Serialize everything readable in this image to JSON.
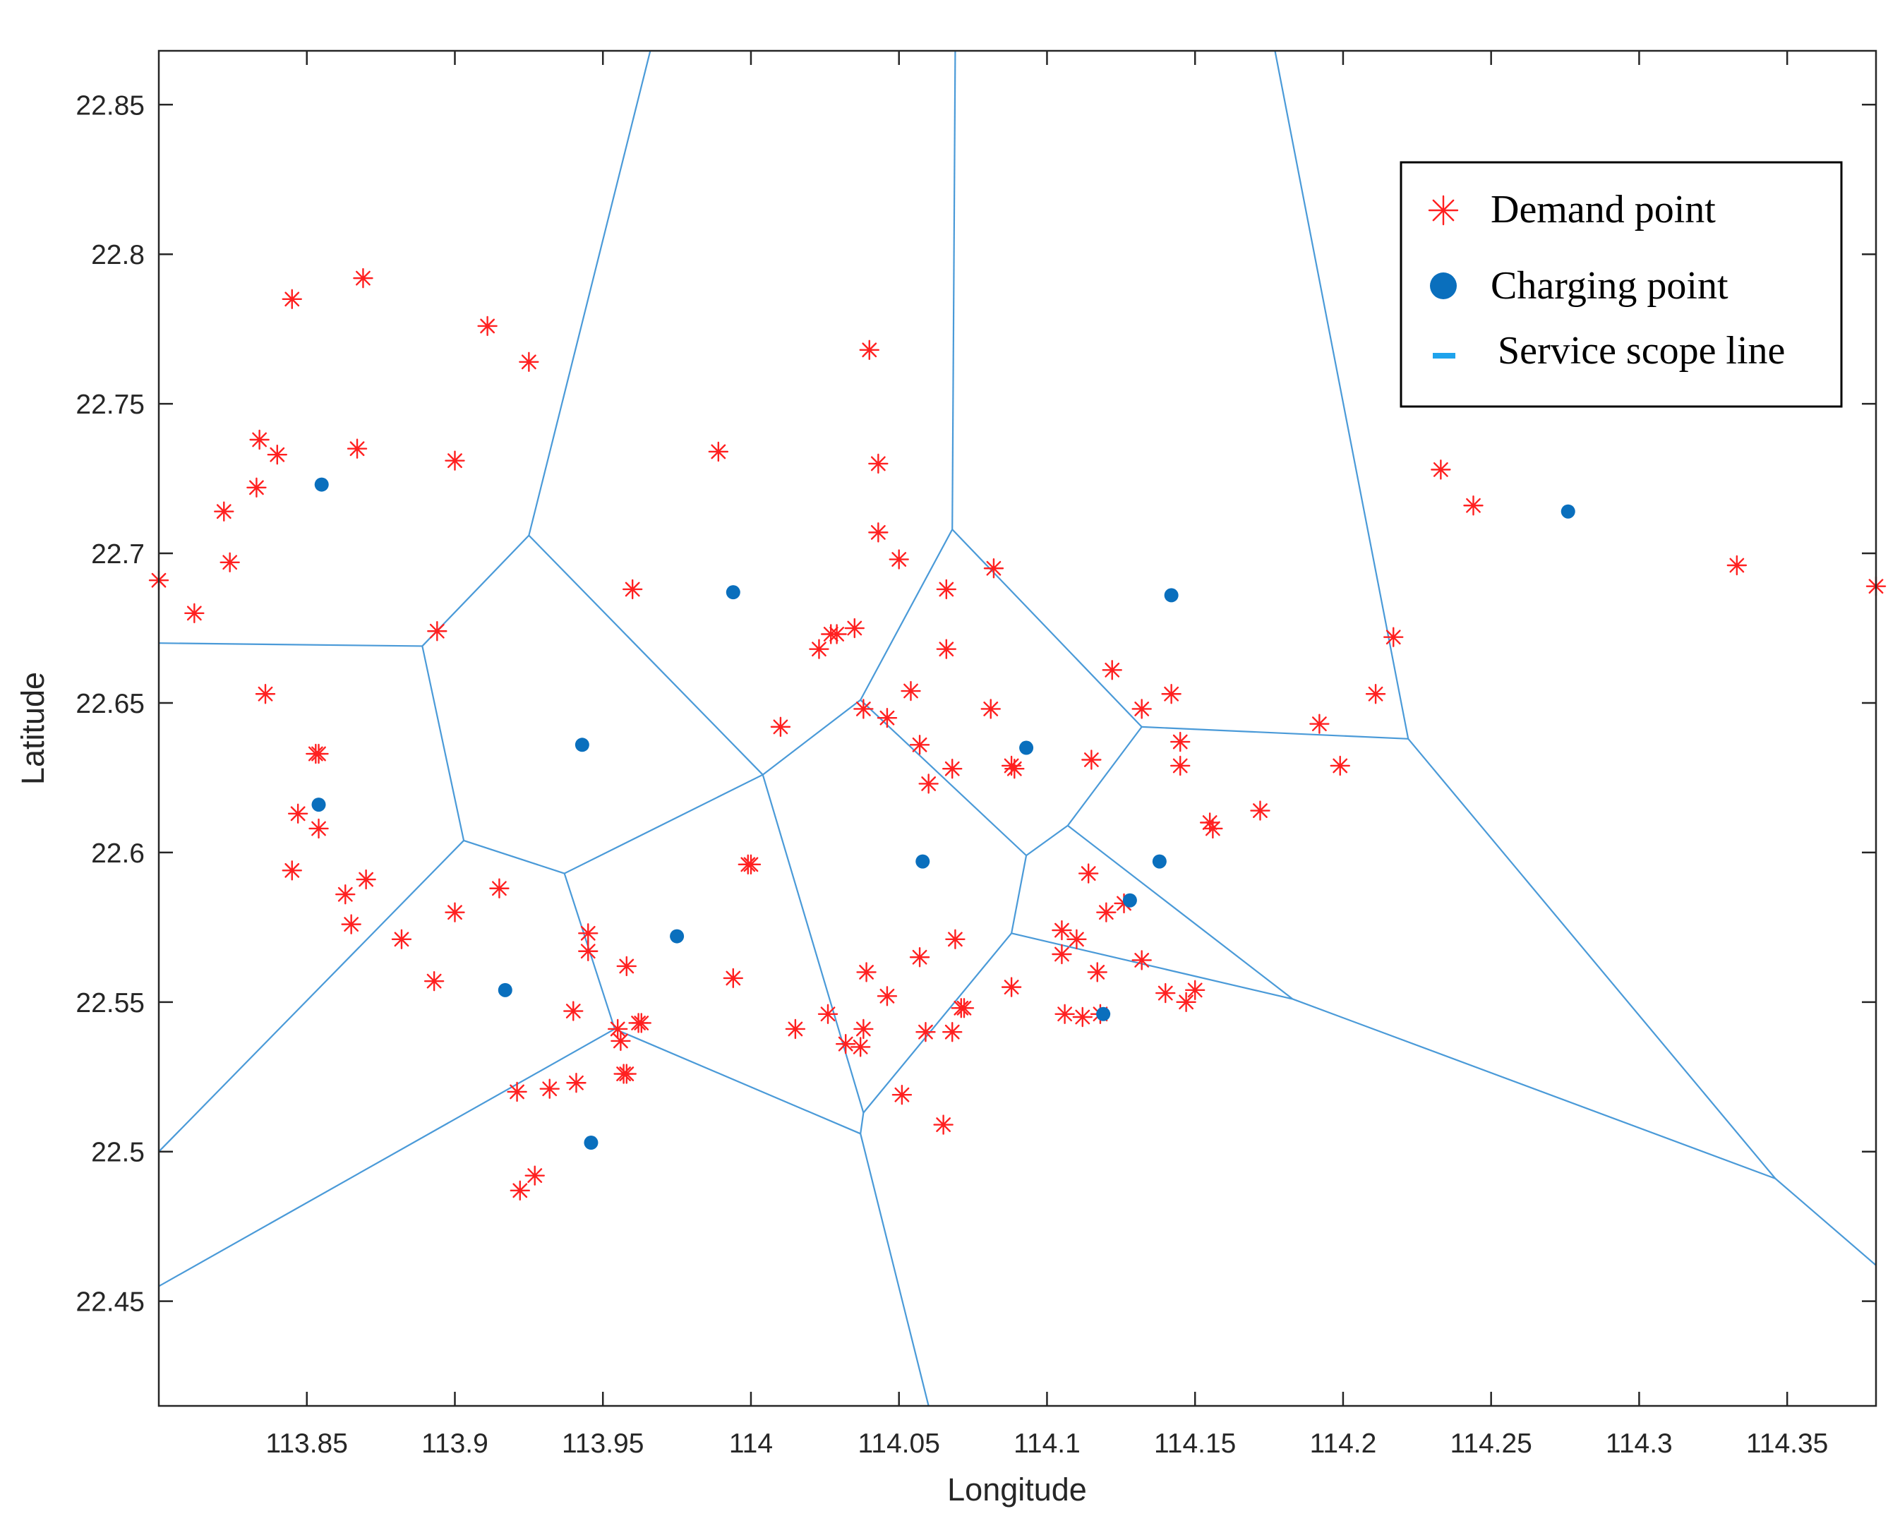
{
  "chart_data": {
    "type": "scatter",
    "title": "",
    "xlabel": "Longitude",
    "ylabel": "Latitude",
    "xlim": [
      113.8,
      114.38
    ],
    "ylim": [
      22.415,
      22.868
    ],
    "grid": false,
    "legend_position": "top-right",
    "x_ticks": [
      "113.85",
      "113.9",
      "113.95",
      "114",
      "114.05",
      "114.1",
      "114.15",
      "114.2",
      "114.25",
      "114.3",
      "114.35"
    ],
    "x_tick_values": [
      113.85,
      113.9,
      113.95,
      114.0,
      114.05,
      114.1,
      114.15,
      114.2,
      114.25,
      114.3,
      114.35
    ],
    "y_ticks": [
      "22.45",
      "22.5",
      "22.55",
      "22.6",
      "22.65",
      "22.7",
      "22.75",
      "22.8",
      "22.85"
    ],
    "y_tick_values": [
      22.45,
      22.5,
      22.55,
      22.6,
      22.65,
      22.7,
      22.75,
      22.8,
      22.85
    ],
    "colors": {
      "demand": "#ff2020",
      "charging": "#0a6fbd",
      "service_line": "#4a9ad8",
      "legend_service_line": "#1fa3ec",
      "axes": "#262626"
    },
    "legend": [
      {
        "key": "demand",
        "label": "Demand point"
      },
      {
        "key": "charging",
        "label": "Charging point"
      },
      {
        "key": "service",
        "label": "Service scope line"
      }
    ],
    "series": [
      {
        "name": "Demand point",
        "marker": "asterisk",
        "points": [
          [
            113.8,
            22.691
          ],
          [
            113.812,
            22.68
          ],
          [
            113.822,
            22.714
          ],
          [
            113.824,
            22.697
          ],
          [
            113.833,
            22.722
          ],
          [
            113.834,
            22.738
          ],
          [
            113.84,
            22.733
          ],
          [
            113.845,
            22.785
          ],
          [
            113.869,
            22.792
          ],
          [
            113.867,
            22.735
          ],
          [
            113.836,
            22.653
          ],
          [
            113.853,
            22.633
          ],
          [
            113.854,
            22.633
          ],
          [
            113.847,
            22.613
          ],
          [
            113.854,
            22.608
          ],
          [
            113.845,
            22.594
          ],
          [
            113.863,
            22.586
          ],
          [
            113.87,
            22.591
          ],
          [
            113.865,
            22.576
          ],
          [
            113.882,
            22.571
          ],
          [
            113.893,
            22.557
          ],
          [
            113.9,
            22.58
          ],
          [
            113.894,
            22.674
          ],
          [
            113.9,
            22.731
          ],
          [
            113.911,
            22.776
          ],
          [
            113.925,
            22.764
          ],
          [
            113.915,
            22.588
          ],
          [
            113.94,
            22.547
          ],
          [
            113.945,
            22.573
          ],
          [
            113.945,
            22.567
          ],
          [
            113.958,
            22.562
          ],
          [
            113.955,
            22.541
          ],
          [
            113.956,
            22.537
          ],
          [
            113.957,
            22.526
          ],
          [
            113.958,
            22.526
          ],
          [
            113.962,
            22.543
          ],
          [
            113.963,
            22.543
          ],
          [
            113.921,
            22.52
          ],
          [
            113.932,
            22.521
          ],
          [
            113.941,
            22.523
          ],
          [
            113.922,
            22.487
          ],
          [
            113.927,
            22.492
          ],
          [
            113.96,
            22.688
          ],
          [
            113.989,
            22.734
          ],
          [
            113.994,
            22.558
          ],
          [
            113.999,
            22.596
          ],
          [
            114.0,
            22.596
          ],
          [
            114.01,
            22.642
          ],
          [
            114.015,
            22.541
          ],
          [
            114.023,
            22.668
          ],
          [
            114.027,
            22.673
          ],
          [
            114.029,
            22.673
          ],
          [
            114.035,
            22.675
          ],
          [
            114.026,
            22.546
          ],
          [
            114.032,
            22.536
          ],
          [
            114.037,
            22.535
          ],
          [
            114.038,
            22.541
          ],
          [
            114.039,
            22.56
          ],
          [
            114.04,
            22.768
          ],
          [
            114.043,
            22.73
          ],
          [
            114.043,
            22.707
          ],
          [
            114.05,
            22.698
          ],
          [
            114.038,
            22.648
          ],
          [
            114.046,
            22.645
          ],
          [
            114.046,
            22.552
          ],
          [
            114.051,
            22.519
          ],
          [
            114.054,
            22.654
          ],
          [
            114.057,
            22.636
          ],
          [
            114.06,
            22.623
          ],
          [
            114.057,
            22.565
          ],
          [
            114.059,
            22.54
          ],
          [
            114.065,
            22.509
          ],
          [
            114.066,
            22.688
          ],
          [
            114.066,
            22.668
          ],
          [
            114.068,
            22.628
          ],
          [
            114.069,
            22.571
          ],
          [
            114.072,
            22.548
          ],
          [
            114.068,
            22.54
          ],
          [
            114.071,
            22.548
          ],
          [
            114.082,
            22.695
          ],
          [
            114.081,
            22.648
          ],
          [
            114.088,
            22.629
          ],
          [
            114.089,
            22.628
          ],
          [
            114.088,
            22.555
          ],
          [
            114.105,
            22.574
          ],
          [
            114.11,
            22.571
          ],
          [
            114.105,
            22.566
          ],
          [
            114.106,
            22.546
          ],
          [
            114.112,
            22.545
          ],
          [
            114.114,
            22.593
          ],
          [
            114.115,
            22.631
          ],
          [
            114.117,
            22.56
          ],
          [
            114.118,
            22.546
          ],
          [
            114.12,
            22.58
          ],
          [
            114.126,
            22.583
          ],
          [
            114.122,
            22.661
          ],
          [
            114.132,
            22.648
          ],
          [
            114.142,
            22.653
          ],
          [
            114.132,
            22.564
          ],
          [
            114.14,
            22.553
          ],
          [
            114.145,
            22.637
          ],
          [
            114.145,
            22.629
          ],
          [
            114.147,
            22.55
          ],
          [
            114.15,
            22.554
          ],
          [
            114.155,
            22.61
          ],
          [
            114.156,
            22.608
          ],
          [
            114.172,
            22.614
          ],
          [
            114.192,
            22.643
          ],
          [
            114.199,
            22.629
          ],
          [
            114.211,
            22.653
          ],
          [
            114.217,
            22.672
          ],
          [
            114.233,
            22.728
          ],
          [
            114.244,
            22.716
          ],
          [
            114.333,
            22.696
          ],
          [
            114.38,
            22.689
          ]
        ]
      },
      {
        "name": "Charging point",
        "marker": "filled-circle",
        "points": [
          [
            113.855,
            22.723
          ],
          [
            113.854,
            22.616
          ],
          [
            113.917,
            22.554
          ],
          [
            113.943,
            22.636
          ],
          [
            113.946,
            22.503
          ],
          [
            113.975,
            22.572
          ],
          [
            113.994,
            22.687
          ],
          [
            114.058,
            22.597
          ],
          [
            114.093,
            22.635
          ],
          [
            114.119,
            22.546
          ],
          [
            114.128,
            22.584
          ],
          [
            114.138,
            22.597
          ],
          [
            114.142,
            22.686
          ],
          [
            114.276,
            22.714
          ]
        ]
      },
      {
        "name": "Service scope line",
        "marker": "line",
        "segments": [
          [
            [
              113.925,
              22.706
            ],
            [
              113.966,
              22.868
            ]
          ],
          [
            [
              113.8,
              22.67
            ],
            [
              113.889,
              22.669
            ]
          ],
          [
            [
              113.889,
              22.669
            ],
            [
              113.925,
              22.706
            ]
          ],
          [
            [
              113.889,
              22.669
            ],
            [
              113.903,
              22.604
            ]
          ],
          [
            [
              113.925,
              22.706
            ],
            [
              114.004,
              22.626
            ]
          ],
          [
            [
              113.903,
              22.604
            ],
            [
              113.937,
              22.593
            ]
          ],
          [
            [
              113.937,
              22.593
            ],
            [
              114.004,
              22.626
            ]
          ],
          [
            [
              113.903,
              22.604
            ],
            [
              113.8,
              22.5
            ]
          ],
          [
            [
              113.937,
              22.593
            ],
            [
              113.954,
              22.541
            ]
          ],
          [
            [
              113.954,
              22.541
            ],
            [
              113.8,
              22.455
            ]
          ],
          [
            [
              113.954,
              22.541
            ],
            [
              114.037,
              22.506
            ]
          ],
          [
            [
              114.004,
              22.626
            ],
            [
              114.037,
              22.651
            ]
          ],
          [
            [
              114.004,
              22.626
            ],
            [
              114.038,
              22.513
            ]
          ],
          [
            [
              114.038,
              22.513
            ],
            [
              114.037,
              22.506
            ]
          ],
          [
            [
              114.037,
              22.506
            ],
            [
              114.06,
              22.415
            ]
          ],
          [
            [
              114.037,
              22.651
            ],
            [
              114.068,
              22.708
            ]
          ],
          [
            [
              114.068,
              22.708
            ],
            [
              114.069,
              22.868
            ]
          ],
          [
            [
              114.068,
              22.708
            ],
            [
              114.132,
              22.642
            ]
          ],
          [
            [
              114.037,
              22.651
            ],
            [
              114.093,
              22.599
            ]
          ],
          [
            [
              114.038,
              22.513
            ],
            [
              114.088,
              22.573
            ]
          ],
          [
            [
              114.088,
              22.573
            ],
            [
              114.093,
              22.599
            ]
          ],
          [
            [
              114.093,
              22.599
            ],
            [
              114.107,
              22.609
            ]
          ],
          [
            [
              114.107,
              22.609
            ],
            [
              114.132,
              22.642
            ]
          ],
          [
            [
              114.107,
              22.609
            ],
            [
              114.183,
              22.551
            ]
          ],
          [
            [
              114.088,
              22.573
            ],
            [
              114.183,
              22.551
            ]
          ],
          [
            [
              114.183,
              22.551
            ],
            [
              114.346,
              22.491
            ]
          ],
          [
            [
              114.132,
              22.642
            ],
            [
              114.222,
              22.638
            ]
          ],
          [
            [
              114.222,
              22.638
            ],
            [
              114.177,
              22.868
            ]
          ],
          [
            [
              114.222,
              22.638
            ],
            [
              114.346,
              22.491
            ]
          ],
          [
            [
              114.346,
              22.491
            ],
            [
              114.38,
              22.462
            ]
          ]
        ]
      }
    ]
  }
}
